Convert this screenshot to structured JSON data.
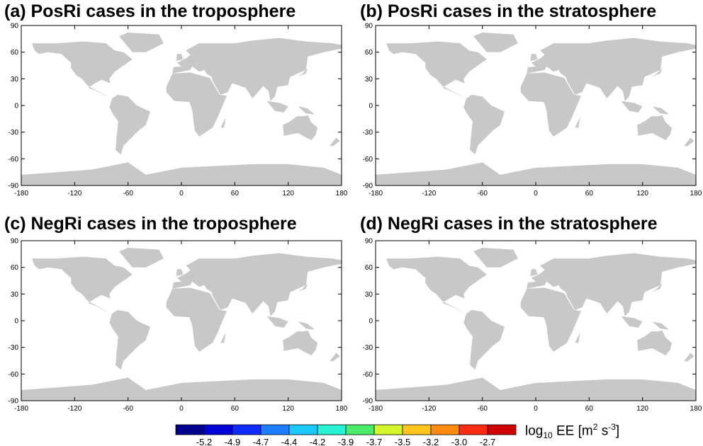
{
  "panels": [
    {
      "id": "a",
      "title": "(a) PosRi cases in the troposphere"
    },
    {
      "id": "b",
      "title": "(b) PosRi cases in the stratosphere"
    },
    {
      "id": "c",
      "title": "(c) NegRi cases in the troposphere"
    },
    {
      "id": "d",
      "title": "(d) NegRi cases in the stratosphere"
    }
  ],
  "axes": {
    "lon_ticks": [
      "-180",
      "-120",
      "-60",
      "0",
      "60",
      "120",
      "180"
    ],
    "lat_ticks": [
      "90",
      "60",
      "30",
      "0",
      "-30",
      "-60",
      "-90"
    ]
  },
  "colorbar": {
    "colors": [
      "#00008f",
      "#0000d9",
      "#0d2bff",
      "#1e7dff",
      "#1bc8ff",
      "#27f2d3",
      "#4aea6a",
      "#d6f52a",
      "#ffc41e",
      "#ff8a10",
      "#ff2a12",
      "#d10000"
    ],
    "labels": [
      "-5.2",
      "-4.9",
      "-4.7",
      "-4.4",
      "-4.2",
      "-3.9",
      "-3.7",
      "-3.5",
      "-3.2",
      "-3.0",
      "-2.7"
    ],
    "title_main": "log",
    "title_sub": "10",
    "title_mid": " EE [m",
    "title_sup1": "2",
    "title_mid2": " s",
    "title_sup2": "-3",
    "title_end": "]"
  }
}
